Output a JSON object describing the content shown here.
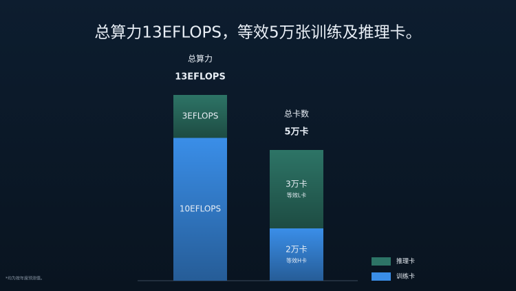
{
  "chart_data": {
    "type": "stacked_bar",
    "title": "总算力13EFLOPS，等效5万张训练及推理卡。",
    "categories": [
      "总算力",
      "总卡数"
    ],
    "totals": [
      13,
      5
    ],
    "total_labels": [
      "13EFLOPS",
      "5万卡"
    ],
    "series": [
      {
        "name": "训练卡",
        "color": "#3a8ee8",
        "values": [
          10,
          2
        ],
        "value_labels": [
          "10EFLOPS",
          "2万卡"
        ],
        "sublabels": [
          null,
          "等效H卡"
        ]
      },
      {
        "name": "推理卡",
        "color": "#2d7466",
        "values": [
          3,
          3
        ],
        "value_labels": [
          "3EFLOPS",
          "3万卡"
        ],
        "sublabels": [
          null,
          "等效L卡"
        ]
      }
    ],
    "footnote": "*均为按年度预测值。"
  }
}
